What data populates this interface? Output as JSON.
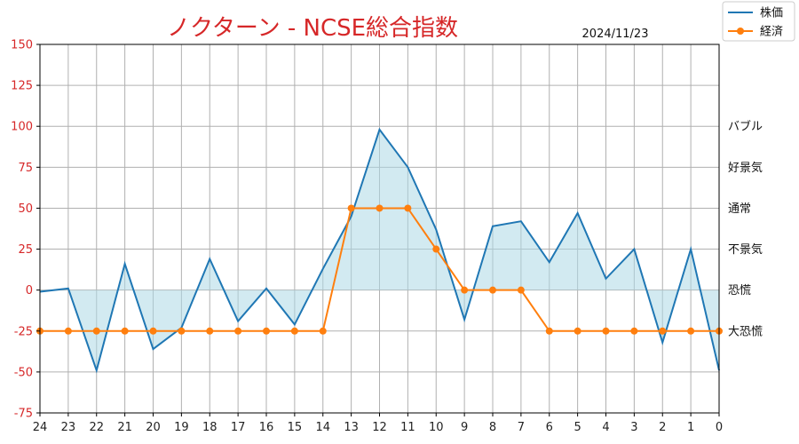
{
  "chart_data": {
    "type": "line",
    "title": "ノクターン - NCSE総合指数",
    "date": "2024/11/23",
    "x": [
      24,
      23,
      22,
      21,
      20,
      19,
      18,
      17,
      16,
      15,
      14,
      13,
      12,
      11,
      10,
      9,
      8,
      7,
      6,
      5,
      4,
      3,
      2,
      1,
      0
    ],
    "xlim": [
      24,
      0
    ],
    "ylim": [
      -75,
      150
    ],
    "yticks": [
      -75,
      -50,
      -25,
      0,
      25,
      50,
      75,
      100,
      125,
      150
    ],
    "grid": true,
    "legend_position": "top-right",
    "series": [
      {
        "name": "株価",
        "color": "#1f77b4",
        "fill_color": "#add8e6",
        "values": [
          -1,
          1,
          -49,
          16,
          -36,
          -23,
          19,
          -19,
          1,
          -21,
          13,
          45,
          98,
          75,
          37,
          -18,
          39,
          42,
          17,
          47,
          7,
          25,
          -32,
          25,
          -49
        ]
      },
      {
        "name": "経済",
        "color": "#ff7f0e",
        "marker": "circle",
        "values": [
          -25,
          -25,
          -25,
          -25,
          -25,
          -25,
          -25,
          -25,
          -25,
          -25,
          -25,
          50,
          50,
          50,
          25,
          0,
          0,
          0,
          -25,
          -25,
          -25,
          -25,
          -25,
          -25,
          -25
        ]
      }
    ],
    "level_labels": [
      {
        "value": 100,
        "label": "バブル"
      },
      {
        "value": 75,
        "label": "好景気"
      },
      {
        "value": 50,
        "label": "通常"
      },
      {
        "value": 25,
        "label": "不景気"
      },
      {
        "value": 0,
        "label": "恐慌"
      },
      {
        "value": -25,
        "label": "大恐慌"
      }
    ]
  }
}
